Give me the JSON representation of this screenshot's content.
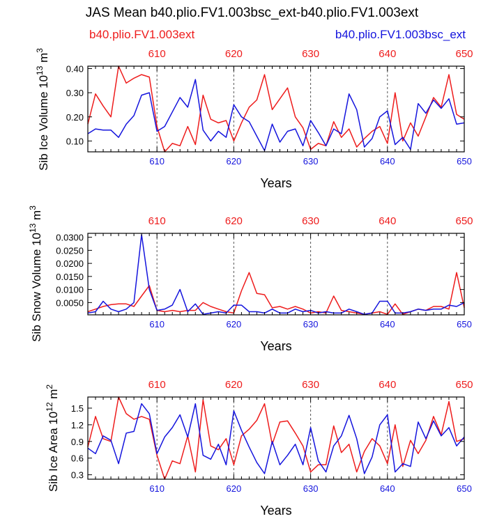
{
  "title": "JAS Mean b40.plio.FV1.003bsc_ext-b40.plio.FV1.003ext",
  "legend": {
    "left": {
      "label": "b40.plio.FV1.003ext",
      "color": "#ee1c1c"
    },
    "right": {
      "label": "b40.plio.FV1.003bsc_ext",
      "color": "#1414dd"
    }
  },
  "colors": {
    "red": "#ee1c1c",
    "blue": "#1414dd",
    "axis": "#000000",
    "grid": "#555555"
  },
  "chart_data": [
    {
      "type": "line",
      "ylabel_main": "Sib Ice Volume 10",
      "ylabel_exp": "13",
      "ylabel_unit": " m",
      "ylabel_unit_exp": "3",
      "xlabel": "Years",
      "xlim": [
        601,
        650
      ],
      "ylim": [
        0.055,
        0.41
      ],
      "yticks": [
        0.1,
        0.2,
        0.3,
        0.4
      ],
      "ytick_labels": [
        "0.10",
        "0.20",
        "0.30",
        "0.40"
      ],
      "xticks": [
        610,
        620,
        630,
        640,
        650
      ],
      "xtick_labels": [
        "610",
        "620",
        "630",
        "640",
        "650"
      ],
      "grid_x": [
        610,
        620,
        630,
        640
      ],
      "x": [
        601,
        602,
        603,
        604,
        605,
        606,
        607,
        608,
        609,
        610,
        611,
        612,
        613,
        614,
        615,
        616,
        617,
        618,
        619,
        620,
        621,
        622,
        623,
        624,
        625,
        626,
        627,
        628,
        629,
        630,
        631,
        632,
        633,
        634,
        635,
        636,
        637,
        638,
        639,
        640,
        641,
        642,
        643,
        644,
        645,
        646,
        647,
        648,
        649,
        650
      ],
      "series": [
        {
          "name": "b40.plio.FV1.003ext",
          "color": "#ee1c1c",
          "values": [
            0.17,
            0.295,
            0.245,
            0.2,
            0.41,
            0.34,
            0.36,
            0.375,
            0.365,
            0.16,
            0.055,
            0.09,
            0.08,
            0.16,
            0.085,
            0.29,
            0.19,
            0.175,
            0.185,
            0.1,
            0.175,
            0.24,
            0.27,
            0.375,
            0.23,
            0.275,
            0.32,
            0.2,
            0.155,
            0.065,
            0.09,
            0.08,
            0.18,
            0.115,
            0.15,
            0.075,
            0.11,
            0.14,
            0.16,
            0.09,
            0.3,
            0.1,
            0.175,
            0.12,
            0.2,
            0.28,
            0.24,
            0.375,
            0.21,
            0.19
          ]
        },
        {
          "name": "b40.plio.FV1.003bsc_ext",
          "color": "#1414dd",
          "values": [
            0.13,
            0.15,
            0.145,
            0.145,
            0.115,
            0.17,
            0.205,
            0.29,
            0.3,
            0.14,
            0.16,
            0.22,
            0.28,
            0.24,
            0.355,
            0.145,
            0.1,
            0.14,
            0.115,
            0.25,
            0.2,
            0.18,
            0.12,
            0.06,
            0.17,
            0.095,
            0.14,
            0.15,
            0.08,
            0.185,
            0.135,
            0.08,
            0.15,
            0.13,
            0.295,
            0.23,
            0.075,
            0.11,
            0.2,
            0.225,
            0.085,
            0.115,
            0.065,
            0.255,
            0.215,
            0.27,
            0.235,
            0.275,
            0.17,
            0.175
          ]
        }
      ]
    },
    {
      "type": "line",
      "ylabel_main": "Sib Snow Volume 10",
      "ylabel_exp": "13",
      "ylabel_unit": " m",
      "ylabel_unit_exp": "3",
      "xlabel": "Years",
      "xlim": [
        601,
        650
      ],
      "ylim": [
        0.0003,
        0.0315
      ],
      "yticks": [
        0.005,
        0.01,
        0.015,
        0.02,
        0.025,
        0.03
      ],
      "ytick_labels": [
        "0.0050",
        "0.0100",
        "0.0150",
        "0.0200",
        "0.0250",
        "0.0300"
      ],
      "xticks": [
        610,
        620,
        630,
        640,
        650
      ],
      "xtick_labels": [
        "610",
        "620",
        "630",
        "640",
        "650"
      ],
      "grid_x": [
        610,
        620,
        630,
        640
      ],
      "x": [
        601,
        602,
        603,
        604,
        605,
        606,
        607,
        608,
        609,
        610,
        611,
        612,
        613,
        614,
        615,
        616,
        617,
        618,
        619,
        620,
        621,
        622,
        623,
        624,
        625,
        626,
        627,
        628,
        629,
        630,
        631,
        632,
        633,
        634,
        635,
        636,
        637,
        638,
        639,
        640,
        641,
        642,
        643,
        644,
        645,
        646,
        647,
        648,
        649,
        650
      ],
      "series": [
        {
          "name": "b40.plio.FV1.003ext",
          "color": "#ee1c1c",
          "values": [
            0.0015,
            0.0025,
            0.0035,
            0.0042,
            0.0045,
            0.0045,
            0.0035,
            0.0075,
            0.0115,
            0.002,
            0.0015,
            0.002,
            0.0015,
            0.002,
            0.002,
            0.005,
            0.0035,
            0.0025,
            0.0015,
            0.001,
            0.0095,
            0.0165,
            0.0085,
            0.008,
            0.003,
            0.0035,
            0.0025,
            0.0035,
            0.0025,
            0.001,
            0.0015,
            0.001,
            0.0075,
            0.002,
            0.0015,
            0.001,
            0.0005,
            0.001,
            0.0015,
            0.0005,
            0.0045,
            0.0005,
            0.0015,
            0.0025,
            0.002,
            0.0035,
            0.0035,
            0.0025,
            0.0165,
            0.003
          ]
        },
        {
          "name": "b40.plio.FV1.003bsc_ext",
          "color": "#1414dd",
          "values": [
            0.001,
            0.0015,
            0.0055,
            0.0025,
            0.0015,
            0.0025,
            0.005,
            0.031,
            0.01,
            0.002,
            0.0025,
            0.004,
            0.01,
            0.0015,
            0.0045,
            0.0005,
            0.001,
            0.0015,
            0.001,
            0.004,
            0.004,
            0.0015,
            0.0015,
            0.001,
            0.0025,
            0.001,
            0.001,
            0.0025,
            0.0015,
            0.002,
            0.001,
            0.0015,
            0.001,
            0.001,
            0.0025,
            0.0015,
            0.0005,
            0.001,
            0.0055,
            0.0055,
            0.001,
            0.001,
            0.0015,
            0.0025,
            0.002,
            0.0025,
            0.0025,
            0.004,
            0.0035,
            0.005
          ]
        }
      ]
    },
    {
      "type": "line",
      "ylabel_main": "Sib Ice Area 10",
      "ylabel_exp": "12",
      "ylabel_unit": " m",
      "ylabel_unit_exp": "2",
      "xlabel": "Years",
      "xlim": [
        601,
        650
      ],
      "ylim": [
        0.22,
        1.7
      ],
      "yticks": [
        0.3,
        0.6,
        0.9,
        1.2,
        1.5
      ],
      "ytick_labels": [
        "0.3",
        "0.6",
        "0.9",
        "1.2",
        "1.5"
      ],
      "xticks": [
        610,
        620,
        630,
        640,
        650
      ],
      "xtick_labels": [
        "610",
        "620",
        "630",
        "640",
        "650"
      ],
      "grid_x": [
        610,
        620,
        630,
        640
      ],
      "x": [
        601,
        602,
        603,
        604,
        605,
        606,
        607,
        608,
        609,
        610,
        611,
        612,
        613,
        614,
        615,
        616,
        617,
        618,
        619,
        620,
        621,
        622,
        623,
        624,
        625,
        626,
        627,
        628,
        629,
        630,
        631,
        632,
        633,
        634,
        635,
        636,
        637,
        638,
        639,
        640,
        641,
        642,
        643,
        644,
        645,
        646,
        647,
        648,
        649,
        650
      ],
      "series": [
        {
          "name": "b40.plio.FV1.003ext",
          "color": "#ee1c1c",
          "values": [
            0.8,
            1.35,
            0.95,
            0.9,
            1.7,
            1.4,
            1.3,
            1.35,
            1.3,
            0.65,
            0.22,
            0.55,
            0.5,
            1.0,
            0.35,
            1.65,
            0.82,
            0.75,
            0.95,
            0.48,
            1.0,
            1.12,
            1.28,
            1.58,
            0.85,
            1.25,
            1.27,
            1.05,
            0.82,
            0.35,
            0.48,
            0.48,
            1.18,
            0.7,
            0.85,
            0.35,
            0.72,
            0.95,
            0.82,
            0.5,
            1.2,
            0.45,
            0.92,
            0.68,
            0.92,
            1.35,
            1.02,
            1.62,
            0.9,
            0.95
          ]
        },
        {
          "name": "b40.plio.FV1.003bsc_ext",
          "color": "#1414dd",
          "values": [
            0.78,
            0.68,
            1.0,
            0.92,
            0.5,
            1.05,
            1.08,
            1.58,
            1.4,
            0.68,
            0.98,
            1.15,
            1.38,
            0.98,
            1.58,
            0.65,
            0.58,
            0.85,
            0.48,
            1.45,
            1.1,
            0.8,
            0.52,
            0.32,
            0.9,
            0.48,
            0.65,
            0.85,
            0.48,
            1.15,
            0.55,
            0.35,
            0.82,
            1.0,
            1.37,
            0.95,
            0.32,
            0.62,
            1.2,
            1.38,
            0.35,
            0.5,
            0.45,
            1.25,
            0.95,
            1.27,
            1.0,
            1.15,
            0.82,
            0.98
          ]
        }
      ]
    }
  ]
}
